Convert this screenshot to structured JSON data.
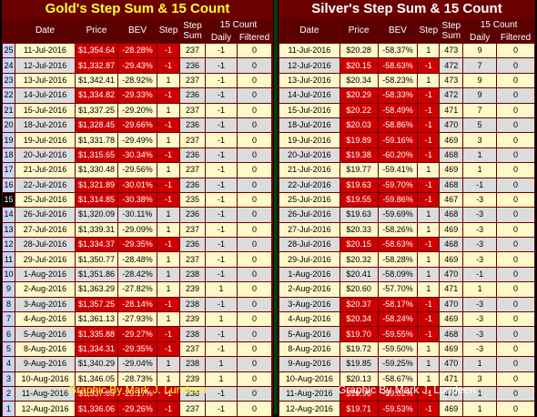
{
  "gold": {
    "title": "Gold's Step Sum & 15 Count",
    "headers": {
      "date": "Date",
      "price": "Price",
      "bev": "BEV",
      "step": "Step",
      "stepsum": "Step Sum",
      "count15": "15 Count",
      "daily": "Daily",
      "filtered": "Filtered"
    },
    "rows": [
      {
        "idx": "25",
        "date": "11-Jul-2016",
        "price": "$1,354.64",
        "bev": "-28.28%",
        "step": "-1",
        "sum": "237",
        "daily": "-1",
        "filt": "0",
        "red": true
      },
      {
        "idx": "24",
        "date": "12-Jul-2016",
        "price": "$1,332.87",
        "bev": "-29.43%",
        "step": "-1",
        "sum": "236",
        "daily": "-1",
        "filt": "0",
        "red": true
      },
      {
        "idx": "23",
        "date": "13-Jul-2016",
        "price": "$1,342.41",
        "bev": "-28.92%",
        "step": "1",
        "sum": "237",
        "daily": "-1",
        "filt": "0",
        "red": false
      },
      {
        "idx": "22",
        "date": "14-Jul-2016",
        "price": "$1,334.82",
        "bev": "-29.33%",
        "step": "-1",
        "sum": "236",
        "daily": "-1",
        "filt": "0",
        "red": true
      },
      {
        "idx": "21",
        "date": "15-Jul-2016",
        "price": "$1,337.25",
        "bev": "-29.20%",
        "step": "1",
        "sum": "237",
        "daily": "-1",
        "filt": "0",
        "red": false
      },
      {
        "idx": "20",
        "date": "18-Jul-2016",
        "price": "$1,328.45",
        "bev": "-29.66%",
        "step": "-1",
        "sum": "236",
        "daily": "-1",
        "filt": "0",
        "red": true
      },
      {
        "idx": "19",
        "date": "19-Jul-2016",
        "price": "$1,331.78",
        "bev": "-29.49%",
        "step": "1",
        "sum": "237",
        "daily": "-1",
        "filt": "0",
        "red": false
      },
      {
        "idx": "18",
        "date": "20-Jul-2016",
        "price": "$1,315.65",
        "bev": "-30.34%",
        "step": "-1",
        "sum": "236",
        "daily": "-1",
        "filt": "0",
        "red": true
      },
      {
        "idx": "17",
        "date": "21-Jul-2016",
        "price": "$1,330.48",
        "bev": "-29.56%",
        "step": "1",
        "sum": "237",
        "daily": "-1",
        "filt": "0",
        "red": false
      },
      {
        "idx": "16",
        "date": "22-Jul-2016",
        "price": "$1,321.89",
        "bev": "-30.01%",
        "step": "-1",
        "sum": "236",
        "daily": "-1",
        "filt": "0",
        "red": true
      },
      {
        "idx": "15",
        "date": "25-Jul-2016",
        "price": "$1,314.85",
        "bev": "-30.38%",
        "step": "-1",
        "sum": "235",
        "daily": "-1",
        "filt": "0",
        "red": true,
        "cur": true
      },
      {
        "idx": "14",
        "date": "26-Jul-2016",
        "price": "$1,320.09",
        "bev": "-30.11%",
        "step": "1",
        "sum": "236",
        "daily": "-1",
        "filt": "0",
        "red": false
      },
      {
        "idx": "13",
        "date": "27-Jul-2016",
        "price": "$1,339.31",
        "bev": "-29.09%",
        "step": "1",
        "sum": "237",
        "daily": "-1",
        "filt": "0",
        "red": false
      },
      {
        "idx": "12",
        "date": "28-Jul-2016",
        "price": "$1,334.37",
        "bev": "-29.35%",
        "step": "-1",
        "sum": "236",
        "daily": "-1",
        "filt": "0",
        "red": true
      },
      {
        "idx": "11",
        "date": "29-Jul-2016",
        "price": "$1,350.77",
        "bev": "-28.48%",
        "step": "1",
        "sum": "237",
        "daily": "-1",
        "filt": "0",
        "red": false
      },
      {
        "idx": "10",
        "date": "1-Aug-2016",
        "price": "$1,351.86",
        "bev": "-28.42%",
        "step": "1",
        "sum": "238",
        "daily": "-1",
        "filt": "0",
        "red": false
      },
      {
        "idx": "9",
        "date": "2-Aug-2016",
        "price": "$1,363.29",
        "bev": "-27.82%",
        "step": "1",
        "sum": "239",
        "daily": "1",
        "filt": "0",
        "red": false
      },
      {
        "idx": "8",
        "date": "3-Aug-2016",
        "price": "$1,357.25",
        "bev": "-28.14%",
        "step": "-1",
        "sum": "238",
        "daily": "-1",
        "filt": "0",
        "red": true
      },
      {
        "idx": "7",
        "date": "4-Aug-2016",
        "price": "$1,361.13",
        "bev": "-27.93%",
        "step": "1",
        "sum": "239",
        "daily": "1",
        "filt": "0",
        "red": false
      },
      {
        "idx": "6",
        "date": "5-Aug-2016",
        "price": "$1,335.88",
        "bev": "-29.27%",
        "step": "-1",
        "sum": "238",
        "daily": "-1",
        "filt": "0",
        "red": true
      },
      {
        "idx": "5",
        "date": "8-Aug-2016",
        "price": "$1,334.31",
        "bev": "-29.35%",
        "step": "-1",
        "sum": "237",
        "daily": "-1",
        "filt": "0",
        "red": true
      },
      {
        "idx": "4",
        "date": "9-Aug-2016",
        "price": "$1,340.29",
        "bev": "-29.04%",
        "step": "1",
        "sum": "238",
        "daily": "1",
        "filt": "0",
        "red": false
      },
      {
        "idx": "3",
        "date": "10-Aug-2016",
        "price": "$1,346.05",
        "bev": "-28.73%",
        "step": "1",
        "sum": "239",
        "daily": "1",
        "filt": "0",
        "red": false
      },
      {
        "idx": "2",
        "date": "11-Aug-2016",
        "price": "$1,337.83",
        "bev": "-29.17%",
        "step": "-1",
        "sum": "238",
        "daily": "-1",
        "filt": "0",
        "red": true
      },
      {
        "idx": "1",
        "date": "12-Aug-2016",
        "price": "$1,336.06",
        "bev": "-29.26%",
        "step": "-1",
        "sum": "237",
        "daily": "-1",
        "filt": "0",
        "red": true
      }
    ],
    "footer": "Graphic By Mark J. Lundeen"
  },
  "silver": {
    "title": "Silver's Step Sum & 15 Count",
    "headers": {
      "date": "Date",
      "price": "Price",
      "bev": "BEV",
      "step": "Step",
      "stepsum": "Step Sum",
      "count15": "15 Count",
      "daily": "Daily",
      "filtered": "Filtered"
    },
    "rows": [
      {
        "date": "11-Jul-2016",
        "price": "$20.28",
        "bev": "-58.37%",
        "step": "1",
        "sum": "473",
        "daily": "9",
        "filt": "0",
        "red": false
      },
      {
        "date": "12-Jul-2016",
        "price": "$20.15",
        "bev": "-58.63%",
        "step": "-1",
        "sum": "472",
        "daily": "7",
        "filt": "0",
        "red": true
      },
      {
        "date": "13-Jul-2016",
        "price": "$20.34",
        "bev": "-58.23%",
        "step": "1",
        "sum": "473",
        "daily": "9",
        "filt": "0",
        "red": false
      },
      {
        "date": "14-Jul-2016",
        "price": "$20.29",
        "bev": "-58.33%",
        "step": "-1",
        "sum": "472",
        "daily": "9",
        "filt": "0",
        "red": true
      },
      {
        "date": "15-Jul-2016",
        "price": "$20.22",
        "bev": "-58.49%",
        "step": "-1",
        "sum": "471",
        "daily": "7",
        "filt": "0",
        "red": true
      },
      {
        "date": "18-Jul-2016",
        "price": "$20.03",
        "bev": "-58.86%",
        "step": "-1",
        "sum": "470",
        "daily": "5",
        "filt": "0",
        "red": true
      },
      {
        "date": "19-Jul-2016",
        "price": "$19.89",
        "bev": "-59.16%",
        "step": "-1",
        "sum": "469",
        "daily": "3",
        "filt": "0",
        "red": true
      },
      {
        "date": "20-Jul-2016",
        "price": "$19.38",
        "bev": "-60.20%",
        "step": "-1",
        "sum": "468",
        "daily": "1",
        "filt": "0",
        "red": true
      },
      {
        "date": "21-Jul-2016",
        "price": "$19.77",
        "bev": "-59.41%",
        "step": "1",
        "sum": "469",
        "daily": "1",
        "filt": "0",
        "red": false
      },
      {
        "date": "22-Jul-2016",
        "price": "$19.63",
        "bev": "-59.70%",
        "step": "-1",
        "sum": "468",
        "daily": "-1",
        "filt": "0",
        "red": true
      },
      {
        "date": "25-Jul-2016",
        "price": "$19.55",
        "bev": "-59.86%",
        "step": "-1",
        "sum": "467",
        "daily": "-3",
        "filt": "0",
        "red": true
      },
      {
        "date": "26-Jul-2016",
        "price": "$19.63",
        "bev": "-59.69%",
        "step": "1",
        "sum": "468",
        "daily": "-3",
        "filt": "0",
        "red": false
      },
      {
        "date": "27-Jul-2016",
        "price": "$20.33",
        "bev": "-58.26%",
        "step": "1",
        "sum": "469",
        "daily": "-3",
        "filt": "0",
        "red": false
      },
      {
        "date": "28-Jul-2016",
        "price": "$20.15",
        "bev": "-58.63%",
        "step": "-1",
        "sum": "468",
        "daily": "-3",
        "filt": "0",
        "red": true
      },
      {
        "date": "29-Jul-2016",
        "price": "$20.32",
        "bev": "-58.28%",
        "step": "1",
        "sum": "469",
        "daily": "-3",
        "filt": "0",
        "red": false
      },
      {
        "date": "1-Aug-2016",
        "price": "$20.41",
        "bev": "-58.09%",
        "step": "1",
        "sum": "470",
        "daily": "-1",
        "filt": "0",
        "red": false
      },
      {
        "date": "2-Aug-2016",
        "price": "$20.60",
        "bev": "-57.70%",
        "step": "1",
        "sum": "471",
        "daily": "1",
        "filt": "0",
        "red": false
      },
      {
        "date": "3-Aug-2016",
        "price": "$20.37",
        "bev": "-58.17%",
        "step": "-1",
        "sum": "470",
        "daily": "-3",
        "filt": "0",
        "red": true
      },
      {
        "date": "4-Aug-2016",
        "price": "$20.34",
        "bev": "-58.24%",
        "step": "-1",
        "sum": "469",
        "daily": "-3",
        "filt": "0",
        "red": true
      },
      {
        "date": "5-Aug-2016",
        "price": "$19.70",
        "bev": "-59.55%",
        "step": "-1",
        "sum": "468",
        "daily": "-3",
        "filt": "0",
        "red": true
      },
      {
        "date": "8-Aug-2016",
        "price": "$19.72",
        "bev": "-59.50%",
        "step": "1",
        "sum": "469",
        "daily": "-3",
        "filt": "0",
        "red": false
      },
      {
        "date": "9-Aug-2016",
        "price": "$19.85",
        "bev": "-59.25%",
        "step": "1",
        "sum": "470",
        "daily": "1",
        "filt": "0",
        "red": false
      },
      {
        "date": "10-Aug-2016",
        "price": "$20.13",
        "bev": "-58.67%",
        "step": "1",
        "sum": "471",
        "daily": "3",
        "filt": "0",
        "red": false
      },
      {
        "date": "11-Aug-2016",
        "price": "$19.96",
        "bev": "-59.02%",
        "step": "-1",
        "sum": "470",
        "daily": "1",
        "filt": "0",
        "red": true
      },
      {
        "date": "12-Aug-2016",
        "price": "$19.71",
        "bev": "-59.53%",
        "step": "-1",
        "sum": "469",
        "daily": "1",
        "filt": "0",
        "red": true
      }
    ],
    "footer": "Graphic By Mark J. Lundeen"
  }
}
